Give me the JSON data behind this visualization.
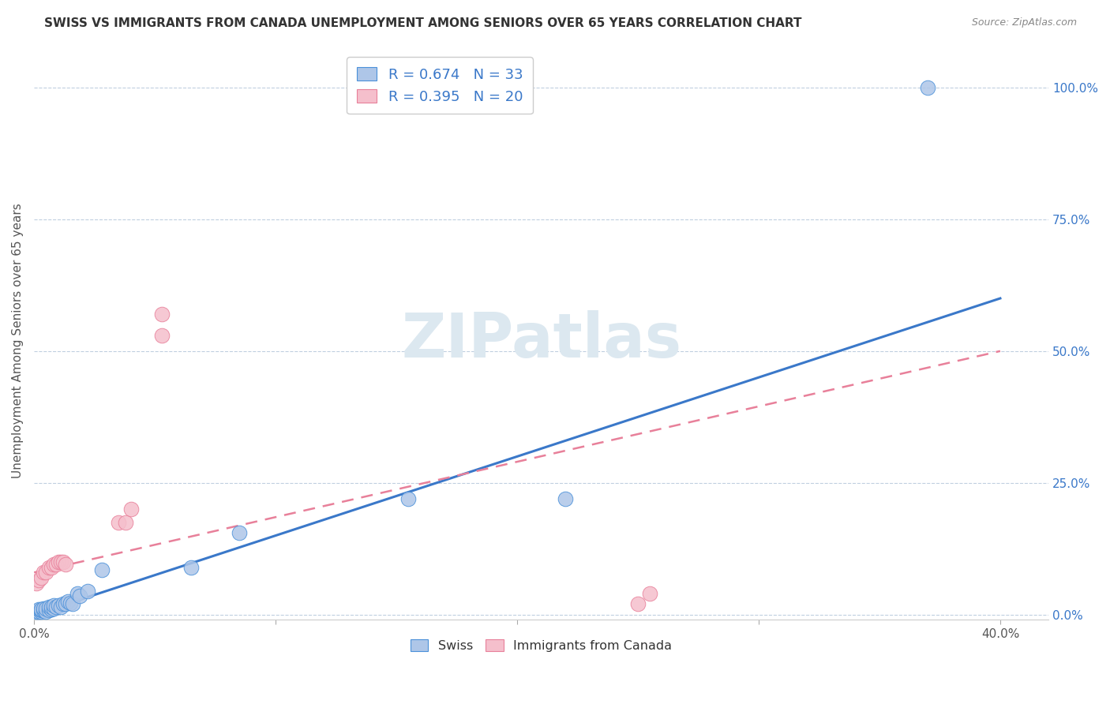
{
  "title": "SWISS VS IMMIGRANTS FROM CANADA UNEMPLOYMENT AMONG SENIORS OVER 65 YEARS CORRELATION CHART",
  "source": "Source: ZipAtlas.com",
  "xlabel_ticks_labels": [
    "0.0%",
    "",
    "",
    "",
    "40.0%"
  ],
  "xlabel_vals": [
    0.0,
    0.1,
    0.2,
    0.3,
    0.4
  ],
  "ylabel": "Unemployment Among Seniors over 65 years",
  "right_ytick_labels": [
    "0.0%",
    "25.0%",
    "50.0%",
    "75.0%",
    "100.0%"
  ],
  "ytick_vals": [
    0.0,
    0.25,
    0.5,
    0.75,
    1.0
  ],
  "swiss_R": 0.674,
  "swiss_N": 33,
  "canada_R": 0.395,
  "canada_N": 20,
  "swiss_color": "#aec6e8",
  "swiss_edge_color": "#4a90d9",
  "swiss_line_color": "#3a78c9",
  "canada_color": "#f5bfcc",
  "canada_edge_color": "#e8809a",
  "canada_line_color": "#e8809a",
  "legend_text_color": "#3a78c9",
  "background_color": "#ffffff",
  "grid_color": "#c0cfe0",
  "title_color": "#333333",
  "ylabel_color": "#555555",
  "right_tick_color": "#3a78c9",
  "swiss_x": [
    0.001,
    0.002,
    0.002,
    0.003,
    0.003,
    0.003,
    0.004,
    0.004,
    0.005,
    0.005,
    0.006,
    0.006,
    0.007,
    0.007,
    0.008,
    0.008,
    0.009,
    0.01,
    0.011,
    0.012,
    0.013,
    0.014,
    0.015,
    0.016,
    0.018,
    0.019,
    0.022,
    0.028,
    0.065,
    0.085,
    0.155,
    0.22,
    0.37
  ],
  "swiss_y": [
    0.005,
    0.005,
    0.01,
    0.005,
    0.008,
    0.01,
    0.008,
    0.012,
    0.005,
    0.012,
    0.008,
    0.014,
    0.01,
    0.015,
    0.012,
    0.018,
    0.015,
    0.018,
    0.014,
    0.02,
    0.02,
    0.025,
    0.022,
    0.02,
    0.04,
    0.035,
    0.045,
    0.085,
    0.09,
    0.155,
    0.22,
    0.22,
    1.0
  ],
  "canada_x": [
    0.001,
    0.002,
    0.003,
    0.004,
    0.005,
    0.006,
    0.007,
    0.008,
    0.009,
    0.01,
    0.011,
    0.012,
    0.013,
    0.035,
    0.038,
    0.04,
    0.053,
    0.053,
    0.25,
    0.255
  ],
  "canada_y": [
    0.06,
    0.065,
    0.07,
    0.08,
    0.08,
    0.09,
    0.09,
    0.095,
    0.095,
    0.1,
    0.1,
    0.1,
    0.095,
    0.175,
    0.175,
    0.2,
    0.53,
    0.57,
    0.02,
    0.04
  ],
  "watermark": "ZIPatlas",
  "watermark_color": "#dce8f0"
}
